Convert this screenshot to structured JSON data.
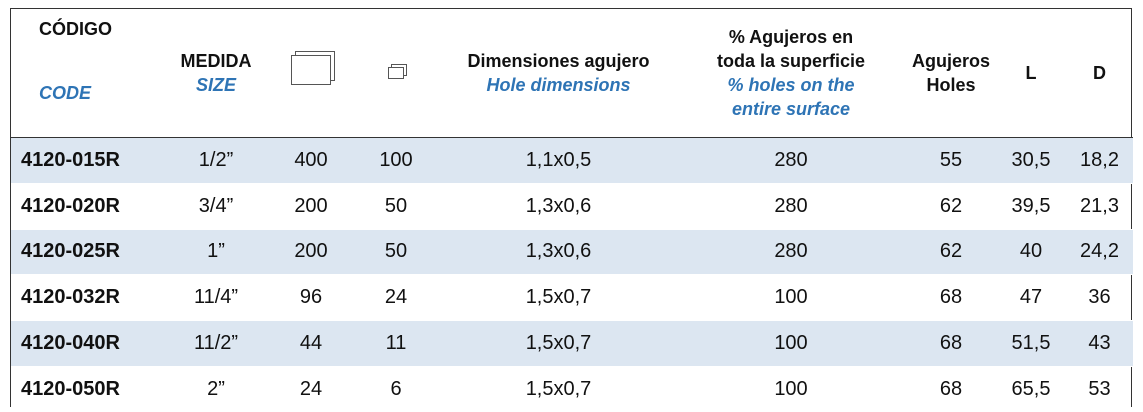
{
  "table": {
    "header": {
      "code": {
        "es": "CÓDIGO",
        "en": "CODE"
      },
      "size": {
        "es": "MEDIDA",
        "en": "SIZE"
      },
      "hole_dimensions": {
        "es": "Dimensiones agujero",
        "en": "Hole dimensions"
      },
      "holes_percent": {
        "es": [
          "% Agujeros en",
          "toda la superficie"
        ],
        "en": [
          "% holes on the",
          "entire surface"
        ]
      },
      "holes": {
        "es": "Agujeros",
        "en": "Holes"
      },
      "l": "L",
      "d": "D"
    },
    "rows": [
      [
        "4120-015R",
        "1/2”",
        "400",
        "100",
        "1,1x0,5",
        "280",
        "55",
        "30,5",
        "18,2"
      ],
      [
        "4120-020R",
        "3/4”",
        "200",
        "50",
        "1,3x0,6",
        "280",
        "62",
        "39,5",
        "21,3"
      ],
      [
        "4120-025R",
        "1”",
        "200",
        "50",
        "1,3x0,6",
        "280",
        "62",
        "40",
        "24,2"
      ],
      [
        "4120-032R",
        "11/4”",
        "96",
        "24",
        "1,5x0,7",
        "100",
        "68",
        "47",
        "36"
      ],
      [
        "4120-040R",
        "11/2”",
        "44",
        "11",
        "1,5x0,7",
        "100",
        "68",
        "51,5",
        "43"
      ],
      [
        "4120-050R",
        "2”",
        "24",
        "6",
        "1,5x0,7",
        "100",
        "68",
        "65,5",
        "53"
      ]
    ]
  }
}
